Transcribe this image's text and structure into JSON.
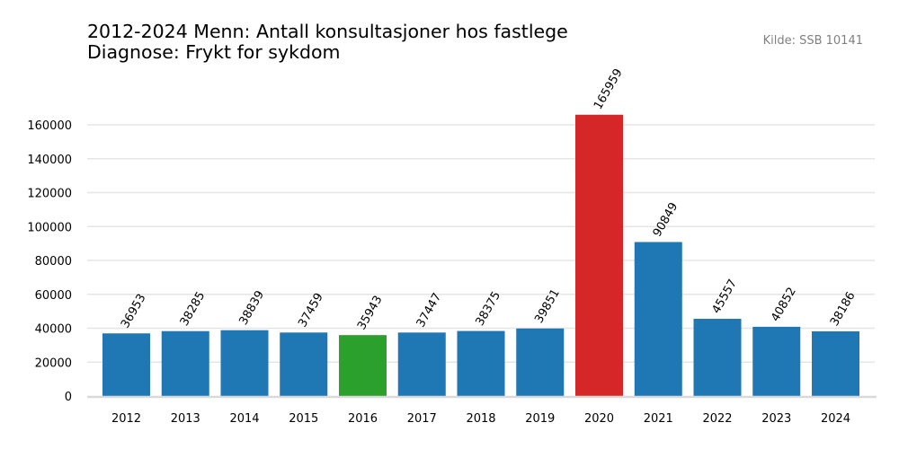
{
  "chart_data": {
    "type": "bar",
    "title_line1": "2012-2024 Menn: Antall konsultasjoner hos fastlege",
    "title_line2": "Diagnose: Frykt for sykdom",
    "source": "Kilde: SSB 10141",
    "xlabel": "",
    "ylabel": "",
    "ylim": [
      0,
      175000
    ],
    "yticks": [
      0,
      20000,
      40000,
      60000,
      80000,
      100000,
      120000,
      140000,
      160000
    ],
    "grid": true,
    "categories": [
      "2012",
      "2013",
      "2014",
      "2015",
      "2016",
      "2017",
      "2018",
      "2019",
      "2020",
      "2021",
      "2022",
      "2023",
      "2024"
    ],
    "values": [
      36953,
      38285,
      38839,
      37459,
      35943,
      37447,
      38375,
      39851,
      165959,
      90849,
      45557,
      40852,
      38186
    ],
    "colors": [
      "#1f77b4",
      "#1f77b4",
      "#1f77b4",
      "#1f77b4",
      "#2ca02c",
      "#1f77b4",
      "#1f77b4",
      "#1f77b4",
      "#d62728",
      "#1f77b4",
      "#1f77b4",
      "#1f77b4",
      "#1f77b4"
    ],
    "gridline_color": "#e5e5e5",
    "axis_color": "#d9d9d9"
  }
}
